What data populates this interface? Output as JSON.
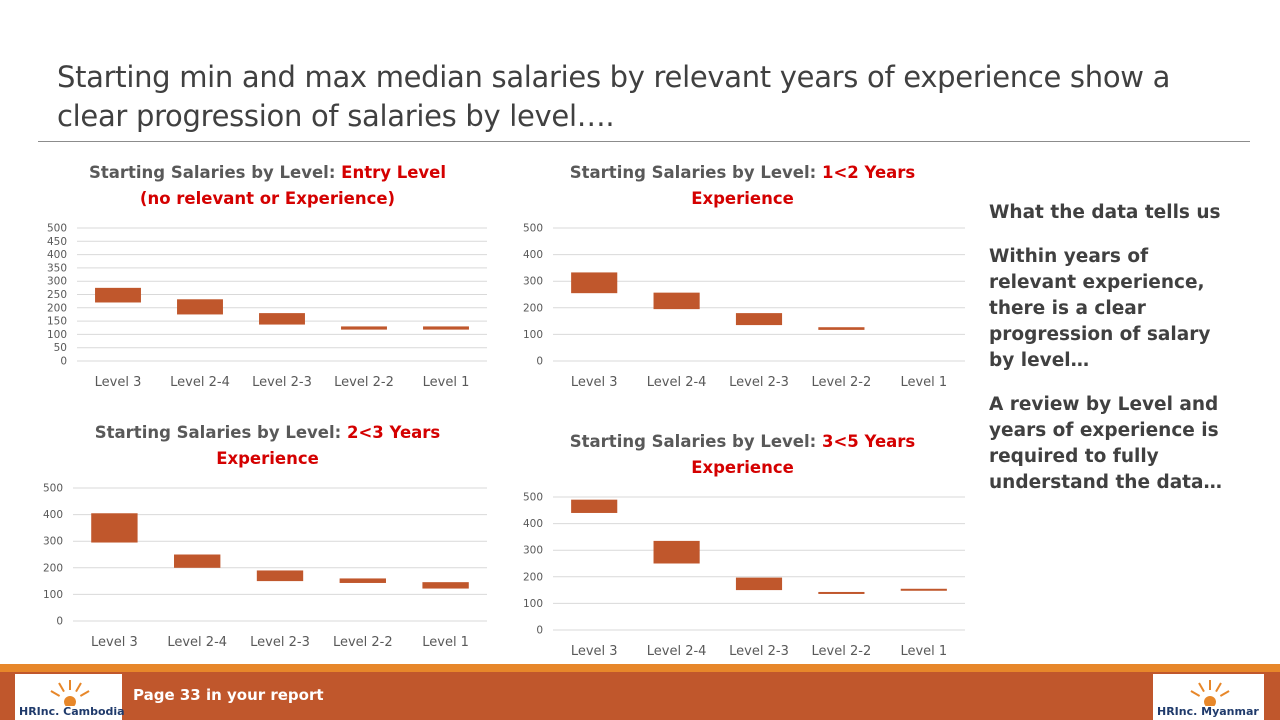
{
  "slide": {
    "title": "Starting min and max median salaries by relevant years of experience show a clear progression of salaries by level…."
  },
  "charts": [
    {
      "title_plain": "Starting Salaries by Level:",
      "title_highlight_1": "Entry Level",
      "title_highlight_2": "(no relevant or Experience)"
    },
    {
      "title_plain": "Starting Salaries by Level:",
      "title_highlight_1": "1<2 Years",
      "title_highlight_2": "Experience"
    },
    {
      "title_plain": "Starting Salaries by Level:",
      "title_highlight_1": "2<3 Years",
      "title_highlight_2": "Experience"
    },
    {
      "title_plain": "Starting Salaries by Level:",
      "title_highlight_1": "3<5 Years",
      "title_highlight_2": "Experience"
    }
  ],
  "chart_data": [
    {
      "type": "bar",
      "subtype": "floating-range",
      "categories": [
        "Level 3",
        "Level 2-4",
        "Level 2-3",
        "Level 2-2",
        "Level 1"
      ],
      "series": [
        {
          "min": [
            220,
            175,
            137,
            118,
            118
          ],
          "max": [
            275,
            232,
            180,
            130,
            130
          ]
        }
      ],
      "yticks": [
        0,
        50,
        100,
        150,
        200,
        250,
        300,
        350,
        400,
        450,
        500
      ],
      "ylim": [
        0,
        500
      ],
      "grid": true,
      "color": "#c0572c"
    },
    {
      "type": "bar",
      "subtype": "floating-range",
      "categories": [
        "Level 3",
        "Level 2-4",
        "Level 2-3",
        "Level 2-2",
        "Level 1"
      ],
      "series": [
        {
          "min": [
            255,
            195,
            135,
            117,
            null
          ],
          "max": [
            333,
            257,
            180,
            127,
            null
          ]
        }
      ],
      "yticks": [
        0,
        100,
        200,
        300,
        400,
        500
      ],
      "ylim": [
        0,
        500
      ],
      "grid": true,
      "color": "#c0572c"
    },
    {
      "type": "bar",
      "subtype": "floating-range",
      "categories": [
        "Level 3",
        "Level 2-4",
        "Level 2-3",
        "Level 2-2",
        "Level 1"
      ],
      "series": [
        {
          "min": [
            295,
            200,
            150,
            143,
            122
          ],
          "max": [
            405,
            250,
            190,
            160,
            146
          ]
        }
      ],
      "yticks": [
        0,
        100,
        200,
        300,
        400,
        500
      ],
      "ylim": [
        0,
        500
      ],
      "grid": true,
      "color": "#c0572c"
    },
    {
      "type": "bar",
      "subtype": "floating-range",
      "categories": [
        "Level 3",
        "Level 2-4",
        "Level 2-3",
        "Level 2-2",
        "Level 1"
      ],
      "series": [
        {
          "min": [
            440,
            250,
            150,
            136,
            150
          ],
          "max": [
            490,
            335,
            197,
            143,
            155
          ]
        }
      ],
      "yticks": [
        0,
        100,
        200,
        300,
        400,
        500
      ],
      "ylim": [
        0,
        500
      ],
      "grid": true,
      "color": "#c0572c"
    }
  ],
  "side_panel": {
    "heading": "What the data tells us",
    "paragraph_1": "Within years of relevant experience, there is a clear progression of salary by level…",
    "paragraph_2": "A review by Level and years of experience is required to fully understand the data…"
  },
  "footer": {
    "page_text": "Page 33 in your report",
    "logo_left_text": "HRInc. Cambodia",
    "logo_right_text": "HRInc. Myanmar",
    "stripe_color": "#e7872a",
    "bar_color": "#c0572c"
  }
}
